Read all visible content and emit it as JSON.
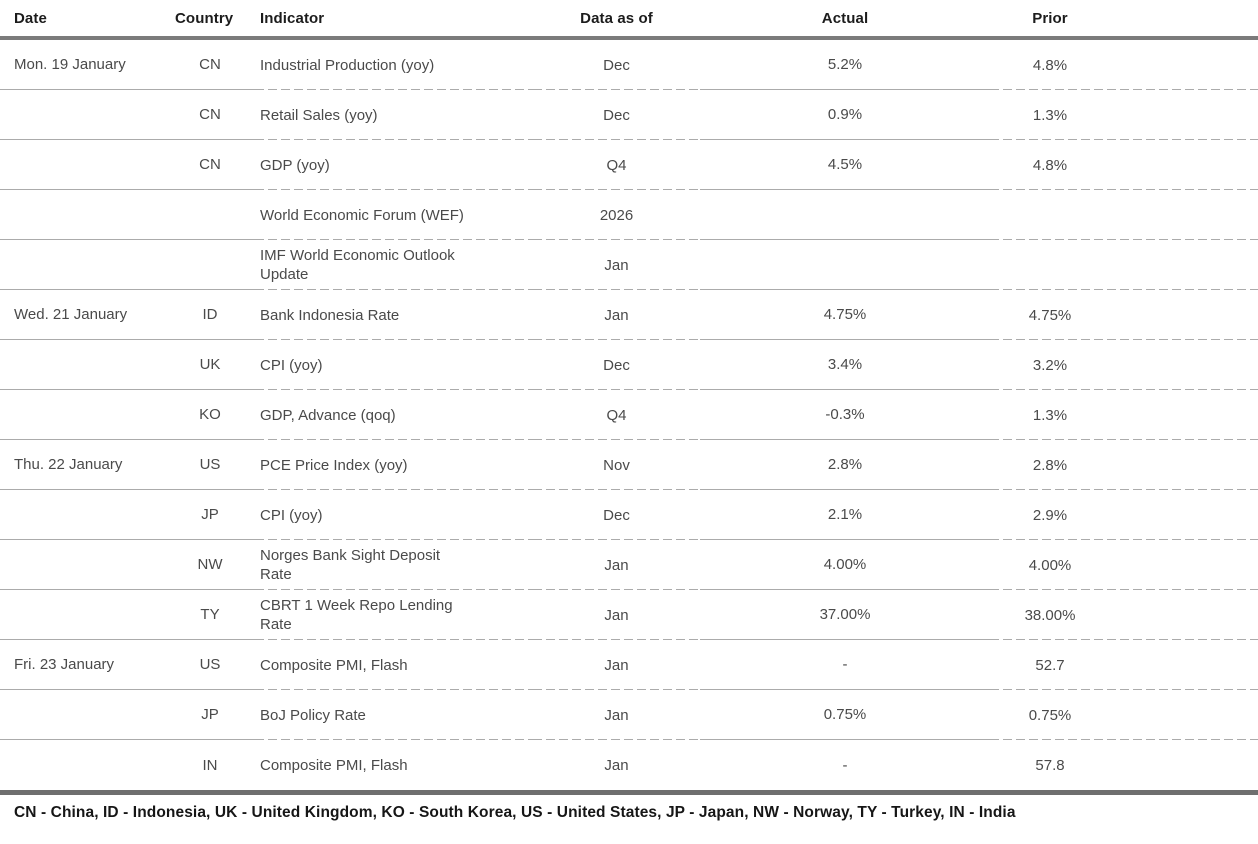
{
  "table": {
    "columns": {
      "date": "Date",
      "country": "Country",
      "indicator": "Indicator",
      "data_as_of": "Data as of",
      "actual": "Actual",
      "prior": "Prior"
    },
    "rows": [
      {
        "date": "Mon. 19 January",
        "country": "CN",
        "indicator": "Industrial Production (yoy)",
        "data_as_of": "Dec",
        "actual": "5.2%",
        "prior": "4.8%"
      },
      {
        "date": "",
        "country": "CN",
        "indicator": "Retail Sales (yoy)",
        "data_as_of": "Dec",
        "actual": "0.9%",
        "prior": "1.3%"
      },
      {
        "date": "",
        "country": "CN",
        "indicator": "GDP (yoy)",
        "data_as_of": "Q4",
        "actual": "4.5%",
        "prior": "4.8%"
      },
      {
        "date": "",
        "country": "",
        "indicator": "World Economic Forum (WEF)",
        "data_as_of": "2026",
        "actual": "",
        "prior": ""
      },
      {
        "date": "",
        "country": "",
        "indicator": "IMF World Economic Outlook Update",
        "data_as_of": "Jan",
        "actual": "",
        "prior": ""
      },
      {
        "date": "Wed. 21 January",
        "country": "ID",
        "indicator": "Bank Indonesia Rate",
        "data_as_of": "Jan",
        "actual": "4.75%",
        "prior": "4.75%"
      },
      {
        "date": "",
        "country": "UK",
        "indicator": "CPI (yoy)",
        "data_as_of": "Dec",
        "actual": "3.4%",
        "prior": "3.2%"
      },
      {
        "date": "",
        "country": "KO",
        "indicator": "GDP, Advance (qoq)",
        "data_as_of": "Q4",
        "actual": "-0.3%",
        "prior": "1.3%"
      },
      {
        "date": "Thu. 22 January",
        "country": "US",
        "indicator": "PCE Price Index (yoy)",
        "data_as_of": "Nov",
        "actual": "2.8%",
        "prior": "2.8%"
      },
      {
        "date": "",
        "country": "JP",
        "indicator": "CPI (yoy)",
        "data_as_of": "Dec",
        "actual": "2.1%",
        "prior": "2.9%"
      },
      {
        "date": "",
        "country": "NW",
        "indicator": "Norges Bank Sight Deposit Rate",
        "data_as_of": "Jan",
        "actual": "4.00%",
        "prior": "4.00%"
      },
      {
        "date": "",
        "country": "TY",
        "indicator": "CBRT 1 Week Repo Lending Rate",
        "data_as_of": "Jan",
        "actual": "37.00%",
        "prior": "38.00%"
      },
      {
        "date": "Fri. 23 January",
        "country": "US",
        "indicator": "Composite PMI, Flash",
        "data_as_of": "Jan",
        "actual": "-",
        "prior": "52.7"
      },
      {
        "date": "",
        "country": "JP",
        "indicator": "BoJ Policy Rate",
        "data_as_of": "Jan",
        "actual": "0.75%",
        "prior": "0.75%"
      },
      {
        "date": "",
        "country": "IN",
        "indicator": "Composite PMI, Flash",
        "data_as_of": "Jan",
        "actual": "-",
        "prior": "57.8"
      }
    ]
  },
  "footnote": "CN - China, ID - Indonesia, UK - United Kingdom, KO - South Korea, US - United States, JP - Japan, NW - Norway, TY - Turkey, IN - India"
}
